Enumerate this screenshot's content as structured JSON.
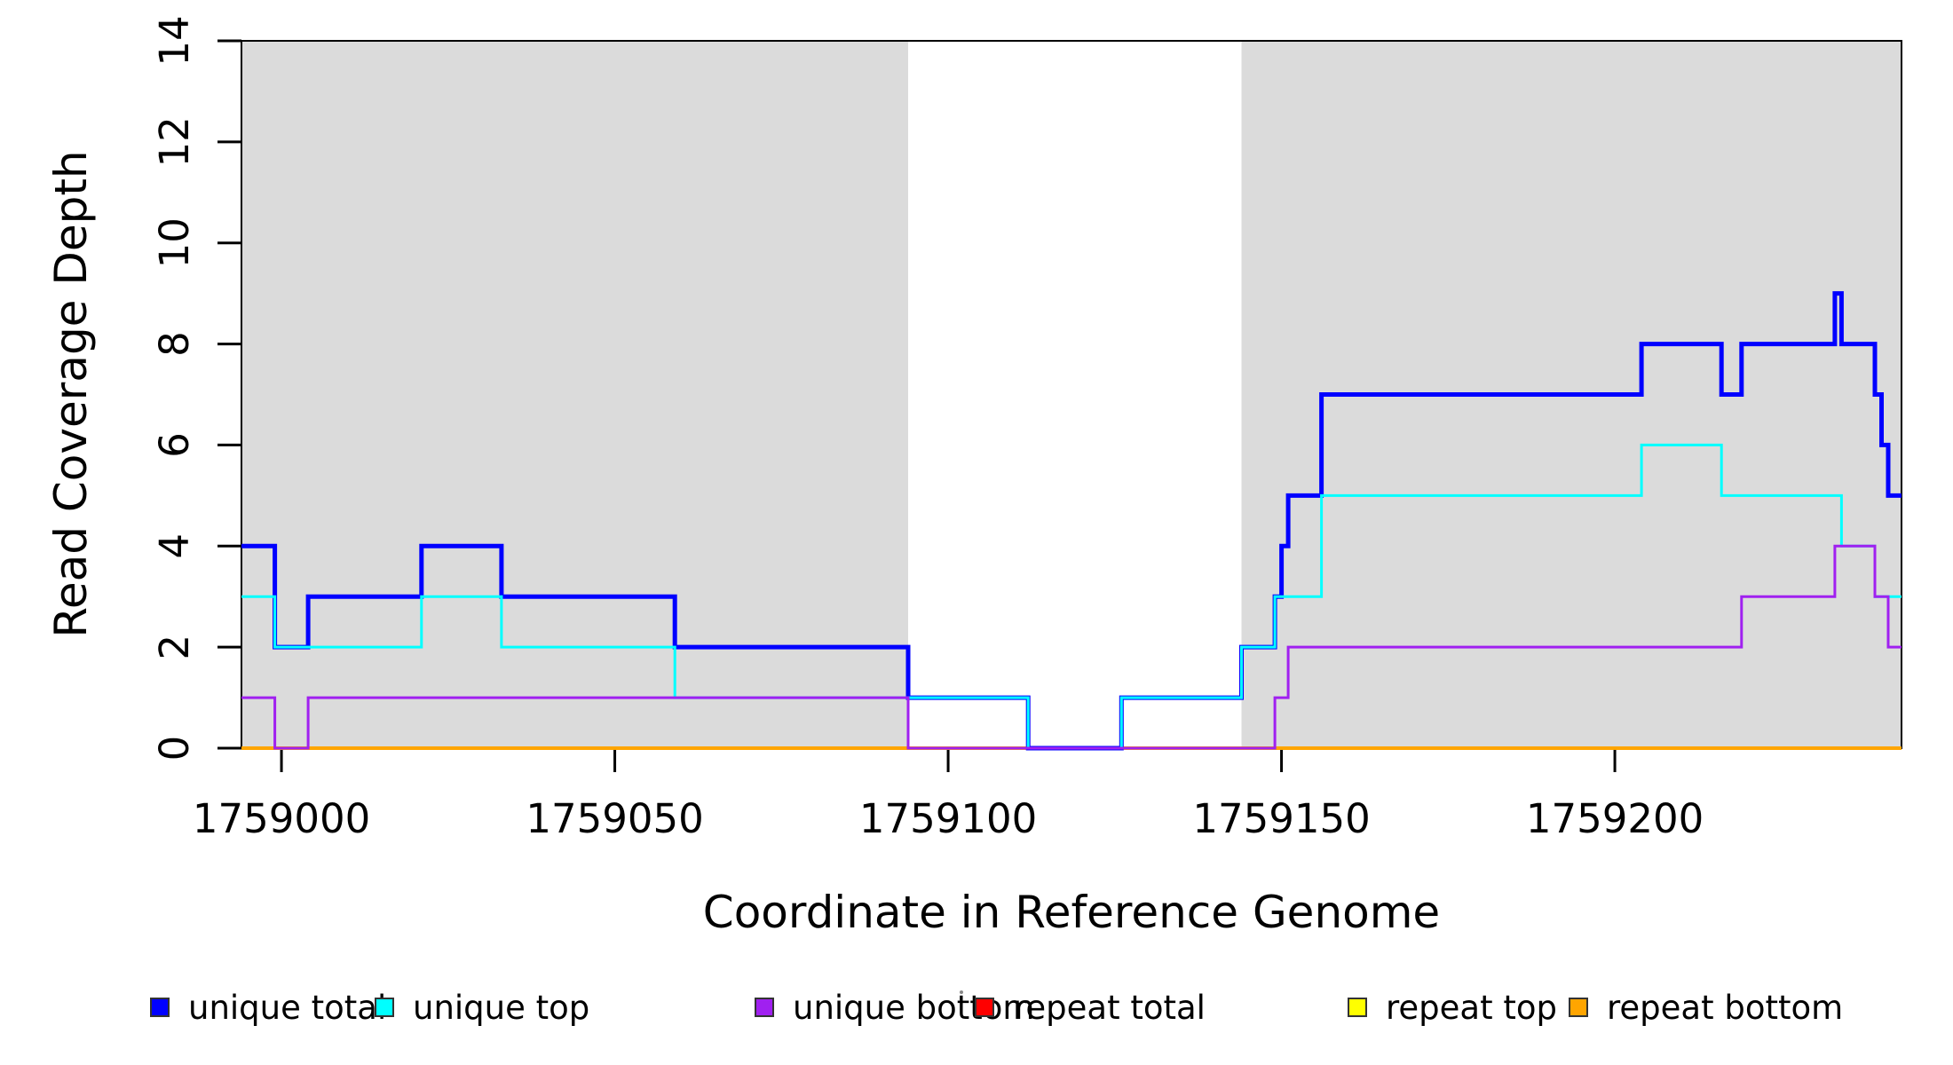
{
  "chart_data": {
    "type": "line",
    "step": true,
    "title": "",
    "xlabel": "Coordinate in Reference Genome",
    "ylabel": "Read Coverage Depth",
    "xlim": [
      1758994,
      1759243
    ],
    "ylim": [
      0,
      14
    ],
    "x_ticks": [
      1759000,
      1759050,
      1759100,
      1759150,
      1759200
    ],
    "y_ticks": [
      0,
      2,
      4,
      6,
      8,
      10,
      12,
      14
    ],
    "grid": false,
    "legend_position": "bottom",
    "shaded_regions": [
      {
        "x0": 1758994,
        "x1": 1759094,
        "color": "#DBDBDB",
        "name": "shaded-region-left"
      },
      {
        "x0": 1759144,
        "x1": 1759243,
        "color": "#DBDBDB",
        "name": "shaded-region-right"
      }
    ],
    "series": [
      {
        "name": "repeat total",
        "color": "#FF0000",
        "line_width": 3,
        "steps": [
          [
            1758994,
            0
          ]
        ]
      },
      {
        "name": "repeat top",
        "color": "#FFFF00",
        "line_width": 3,
        "steps": [
          [
            1758994,
            0
          ]
        ]
      },
      {
        "name": "repeat bottom",
        "color": "#FFA500",
        "line_width": 4,
        "steps": [
          [
            1758994,
            0
          ]
        ]
      },
      {
        "name": "unique total",
        "color": "#0000FF",
        "line_width": 5,
        "steps": [
          [
            1758994,
            4
          ],
          [
            1758999,
            2
          ],
          [
            1759004,
            3
          ],
          [
            1759021,
            4
          ],
          [
            1759033,
            3
          ],
          [
            1759059,
            2
          ],
          [
            1759094,
            1
          ],
          [
            1759112,
            0
          ],
          [
            1759126,
            1
          ],
          [
            1759144,
            2
          ],
          [
            1759149,
            3
          ],
          [
            1759150,
            4
          ],
          [
            1759151,
            5
          ],
          [
            1759156,
            7
          ],
          [
            1759204,
            8
          ],
          [
            1759216,
            7
          ],
          [
            1759219,
            8
          ],
          [
            1759233,
            9
          ],
          [
            1759234,
            8
          ],
          [
            1759239,
            7
          ],
          [
            1759240,
            6
          ],
          [
            1759241,
            5
          ]
        ]
      },
      {
        "name": "unique top",
        "color": "#00FFFF",
        "line_width": 3,
        "steps": [
          [
            1758994,
            3
          ],
          [
            1758999,
            2
          ],
          [
            1759021,
            3
          ],
          [
            1759033,
            2
          ],
          [
            1759059,
            1
          ],
          [
            1759112,
            0
          ],
          [
            1759126,
            1
          ],
          [
            1759144,
            2
          ],
          [
            1759149,
            3
          ],
          [
            1759156,
            5
          ],
          [
            1759204,
            6
          ],
          [
            1759216,
            5
          ],
          [
            1759234,
            4
          ],
          [
            1759239,
            3
          ]
        ]
      },
      {
        "name": "unique bottom",
        "color": "#A020F0",
        "line_width": 3,
        "steps": [
          [
            1758994,
            1
          ],
          [
            1758999,
            0
          ],
          [
            1759004,
            1
          ],
          [
            1759094,
            0
          ],
          [
            1759149,
            1
          ],
          [
            1759151,
            2
          ],
          [
            1759219,
            3
          ],
          [
            1759233,
            4
          ],
          [
            1759239,
            3
          ],
          [
            1759241,
            2
          ]
        ]
      }
    ],
    "legend": {
      "items": [
        {
          "label": "unique total",
          "color": "#0000FF"
        },
        {
          "label": "unique top",
          "color": "#00FFFF"
        },
        {
          "label": "unique bottom",
          "color": "#A020F0"
        },
        {
          "label": "repeat total",
          "color": "#FF0000"
        },
        {
          "label": "repeat top",
          "color": "#FFFF00"
        },
        {
          "label": "repeat bottom",
          "color": "#FFA500"
        }
      ]
    }
  },
  "colors": {
    "background": "#FFFFFF",
    "axis": "#000000",
    "shade": "#DBDBDB"
  }
}
